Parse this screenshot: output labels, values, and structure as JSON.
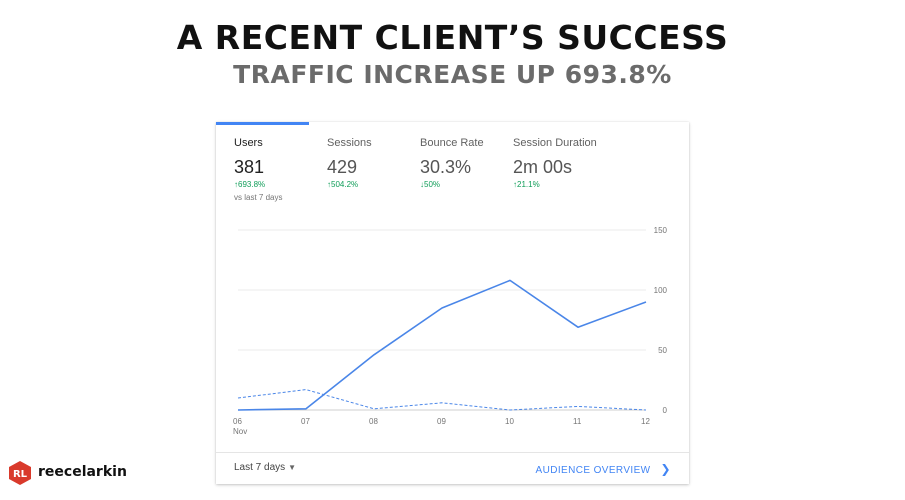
{
  "header": {
    "title": "A RECENT CLIENT’S SUCCESS",
    "subtitle": "TRAFFIC INCREASE UP 693.8%"
  },
  "metrics": [
    {
      "label": "Users",
      "value": "381",
      "change": "↑693.8%",
      "compare": "vs last 7 days",
      "active": true
    },
    {
      "label": "Sessions",
      "value": "429",
      "change": "↑504.2%",
      "active": false
    },
    {
      "label": "Bounce Rate",
      "value": "30.3%",
      "change": "↓50%",
      "active": false
    },
    {
      "label": "Session Duration",
      "value": "2m 00s",
      "change": "↑21.1%",
      "active": false
    }
  ],
  "chart_data": {
    "type": "line",
    "categories": [
      "06 Nov",
      "07",
      "08",
      "09",
      "10",
      "11",
      "12"
    ],
    "x_tick_labels": [
      [
        "06",
        "Nov"
      ],
      [
        "07"
      ],
      [
        "08"
      ],
      [
        "09"
      ],
      [
        "10"
      ],
      [
        "11"
      ],
      [
        "12"
      ]
    ],
    "series": [
      {
        "style": "solid",
        "color": "#4a86e8",
        "values": [
          0,
          1,
          46,
          85,
          108,
          69,
          90
        ]
      },
      {
        "style": "dashed",
        "color": "#4a86e8",
        "values": [
          10,
          17,
          1,
          6,
          0,
          3,
          0
        ]
      }
    ],
    "ylim": [
      0,
      150
    ],
    "y_ticks": [
      0,
      50,
      100,
      150
    ],
    "grid": true
  },
  "footer": {
    "range_label": "Last 7 days",
    "link_label": "AUDIENCE OVERVIEW"
  },
  "brand": {
    "name": "reecelarkin",
    "logo_text": "RL",
    "logo_color": "#d93a2b"
  }
}
